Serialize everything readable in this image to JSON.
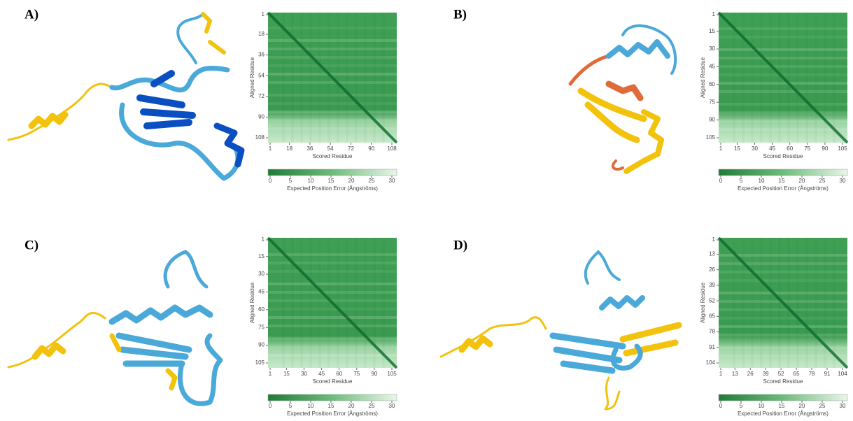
{
  "panels": [
    {
      "label": "A)",
      "heatmap": {
        "y_label": "Aligned Residue",
        "x_label": "Scored Residue",
        "ticks": [
          1,
          18,
          36,
          54,
          72,
          90,
          108
        ],
        "colorbar": {
          "ticks": [
            0,
            5,
            10,
            15,
            20,
            25,
            30
          ],
          "label": "Expected Position Error (Ångströms)"
        }
      }
    },
    {
      "label": "B)",
      "heatmap": {
        "y_label": "Aligned Residue",
        "x_label": "Scored Residue",
        "ticks": [
          1,
          15,
          30,
          45,
          60,
          75,
          90,
          105
        ],
        "colorbar": {
          "ticks": [
            0,
            5,
            10,
            15,
            20,
            25,
            30
          ],
          "label": "Expected Position Error (Ångströms)"
        }
      }
    },
    {
      "label": "C)",
      "heatmap": {
        "y_label": "Aligned Residue",
        "x_label": "Scored Residue",
        "ticks": [
          1,
          15,
          30,
          45,
          60,
          75,
          90,
          105
        ],
        "colorbar": {
          "ticks": [
            0,
            5,
            10,
            15,
            20,
            25,
            30
          ],
          "label": "Expected Position Error (Ångströms)"
        }
      }
    },
    {
      "label": "D)",
      "heatmap": {
        "y_label": "Aligned Residue",
        "x_label": "Scored Residue",
        "ticks": [
          1,
          13,
          26,
          39,
          52,
          65,
          78,
          91,
          104
        ],
        "colorbar": {
          "ticks": [
            0,
            5,
            10,
            15,
            20,
            25,
            30
          ],
          "label": "Expected Position Error (Ångströms)"
        }
      }
    }
  ]
}
